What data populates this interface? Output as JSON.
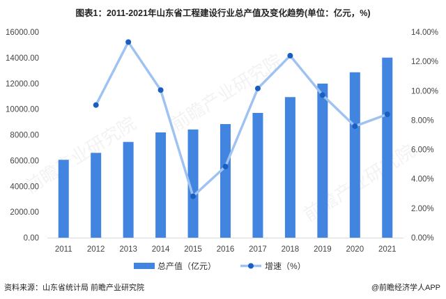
{
  "chart_data": {
    "type": "bar+line",
    "title": "图表1：2011-2021年山东省工程建设行业总产值及变化趋势(单位：亿元，%)",
    "categories": [
      "2011",
      "2012",
      "2013",
      "2014",
      "2015",
      "2016",
      "2017",
      "2018",
      "2019",
      "2020",
      "2021"
    ],
    "series": [
      {
        "name": "总产值（亿元）",
        "type": "bar",
        "axis": "left",
        "color": "#4285e0",
        "values": [
          6060,
          6600,
          7450,
          8190,
          8420,
          8840,
          9710,
          10940,
          11990,
          12870,
          14010
        ]
      },
      {
        "name": "增速（%）",
        "type": "line",
        "axis": "right",
        "color": "#9ec3f2",
        "marker_color": "#1a5fc0",
        "values": [
          null,
          9.03,
          13.32,
          10.05,
          2.82,
          4.84,
          10.16,
          12.39,
          9.71,
          7.59,
          8.4
        ]
      }
    ],
    "y_left": {
      "range": [
        0,
        16000
      ],
      "ticks": [
        "0.00",
        "2000.00",
        "4000.00",
        "6000.00",
        "8000.00",
        "10000.00",
        "12000.00",
        "14000.00",
        "16000.00"
      ]
    },
    "y_right": {
      "range": [
        0,
        14
      ],
      "ticks": [
        "0.00%",
        "2.00%",
        "4.00%",
        "6.00%",
        "8.00%",
        "10.00%",
        "12.00%",
        "14.00%"
      ]
    },
    "legend_position": "bottom",
    "grid": false
  },
  "footer": {
    "source": "资料来源：山东省统计局 前瞻产业研究院",
    "brand": "@前瞻经济学人APP"
  },
  "watermark": "前瞻产业研究院"
}
